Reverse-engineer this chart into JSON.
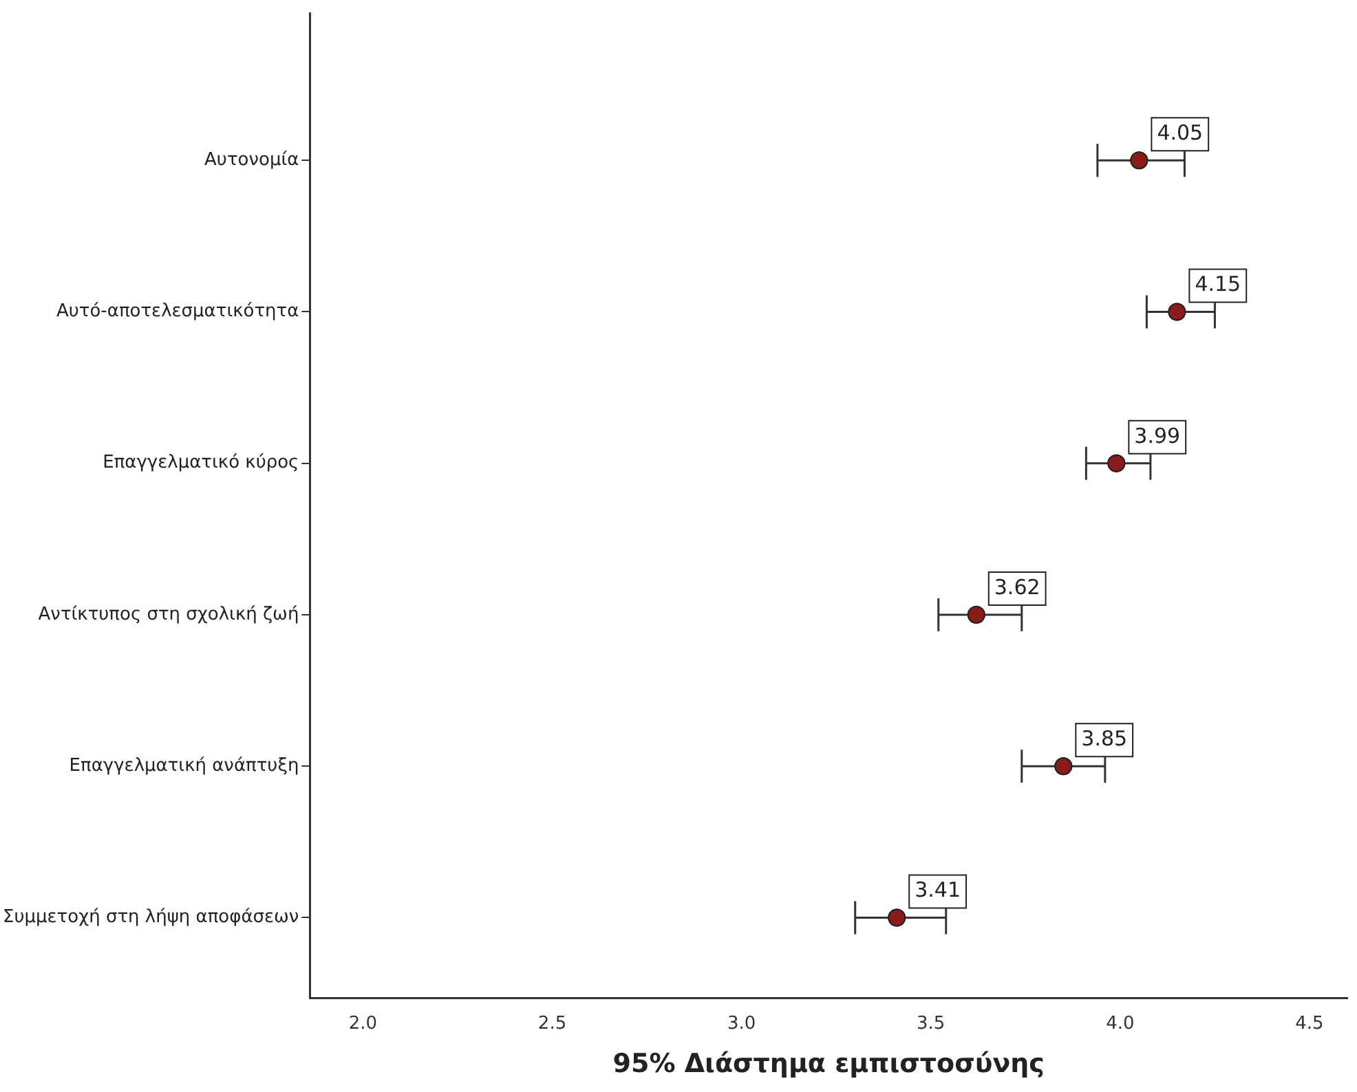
{
  "chart_data": {
    "type": "scatter",
    "orientation": "horizontal",
    "xlabel": "95% Διάστημα εμπιστοσύνης",
    "categories": [
      "Αυτονομία",
      "Αυτό-αποτελεσματικότητα",
      "Επαγγελματικό κύρος",
      "Αντίκτυπος στη σχολική ζωή",
      "Επαγγελματική ανάπτυξη",
      "Συμμετοχή στη λήψη αποφάσεων"
    ],
    "series": [
      {
        "color": "#8b1a1a",
        "values": [
          4.05,
          4.15,
          3.99,
          3.62,
          3.85,
          3.41
        ],
        "errors": [
          [
            3.94,
            4.17
          ],
          [
            4.07,
            4.25
          ],
          [
            3.91,
            4.08
          ],
          [
            3.52,
            3.74
          ],
          [
            3.74,
            3.96
          ],
          [
            3.3,
            3.54
          ]
        ]
      }
    ],
    "xlim": [
      1.86,
      4.6
    ],
    "xticks": [
      {
        "value": 2,
        "label": "2.0"
      },
      2.5,
      {
        "value": 3,
        "label": "3.0"
      },
      3.5,
      {
        "value": 4,
        "label": "4.0"
      },
      4.5
    ],
    "data_labels": true,
    "grid": false,
    "legend": false,
    "marker": "circle"
  }
}
